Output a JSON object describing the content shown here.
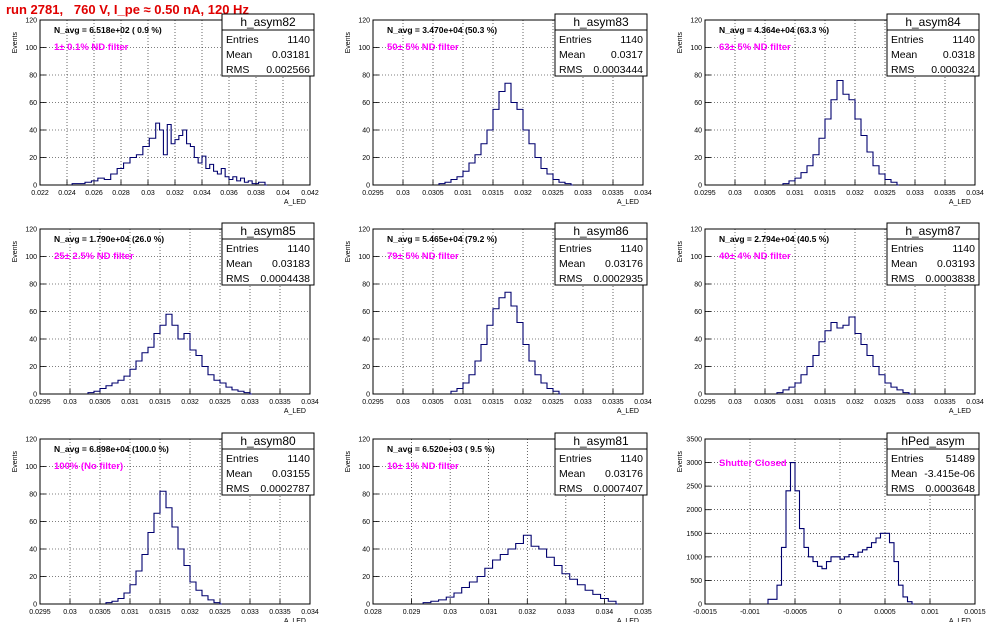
{
  "page_title": "run 2781,   760 V, I_pe ≈ 0.50 nA, 120 Hz",
  "colors": {
    "title": "#e00000",
    "annotation": "#ff00ff",
    "histogram": "#00006e"
  },
  "chart_data": [
    {
      "type": "histogram",
      "name": "h_asym82",
      "ylabel": "Events",
      "xlabel": "A_LED",
      "annotation_navg": "N_avg = 6.518e+02 ( 0.9 %)",
      "annotation_filter": "1± 0.1% ND filter",
      "stats": {
        "Entries": "1140",
        "Mean": "0.03181",
        "RMS": "0.002566"
      },
      "xlim": [
        0.022,
        0.043
      ],
      "ylim": [
        0,
        120
      ],
      "xticks": [
        "0.022",
        "0.024",
        "0.026",
        "0.028",
        "0.03",
        "0.032",
        "0.034",
        "0.036",
        "0.038",
        "0.04",
        "0.042"
      ],
      "yticks": [
        "0",
        "20",
        "40",
        "60",
        "80",
        "100",
        "120"
      ],
      "bins": [
        [
          0.0245,
          1
        ],
        [
          0.0255,
          2
        ],
        [
          0.026,
          3
        ],
        [
          0.0265,
          5
        ],
        [
          0.027,
          4
        ],
        [
          0.0275,
          8
        ],
        [
          0.028,
          12
        ],
        [
          0.0285,
          16
        ],
        [
          0.029,
          20
        ],
        [
          0.0295,
          22
        ],
        [
          0.03,
          28
        ],
        [
          0.0305,
          34
        ],
        [
          0.031,
          45
        ],
        [
          0.0313,
          40
        ],
        [
          0.0316,
          22
        ],
        [
          0.0319,
          44
        ],
        [
          0.0322,
          30
        ],
        [
          0.0325,
          33
        ],
        [
          0.0328,
          36
        ],
        [
          0.0331,
          40
        ],
        [
          0.0334,
          30
        ],
        [
          0.0337,
          28
        ],
        [
          0.034,
          20
        ],
        [
          0.0343,
          16
        ],
        [
          0.0346,
          21
        ],
        [
          0.0349,
          12
        ],
        [
          0.0352,
          15
        ],
        [
          0.0355,
          10
        ],
        [
          0.0358,
          8
        ],
        [
          0.0361,
          12
        ],
        [
          0.0364,
          6
        ],
        [
          0.0367,
          4
        ],
        [
          0.037,
          6
        ],
        [
          0.0373,
          3
        ],
        [
          0.0376,
          5
        ],
        [
          0.0379,
          2
        ],
        [
          0.0382,
          3
        ],
        [
          0.0385,
          1
        ],
        [
          0.039,
          2
        ],
        [
          0.0395,
          0
        ]
      ]
    },
    {
      "type": "histogram",
      "name": "h_asym83",
      "ylabel": "Events",
      "xlabel": "A_LED",
      "annotation_navg": "N_avg = 3.470e+04 (50.3 %)",
      "annotation_filter": "50± 5% ND filter",
      "stats": {
        "Entries": "1140",
        "Mean": "0.0317",
        "RMS": "0.0003444"
      },
      "xlim": [
        0.0295,
        0.034
      ],
      "ylim": [
        0,
        120
      ],
      "xticks": [
        "0.0295",
        "0.03",
        "0.0305",
        "0.031",
        "0.0315",
        "0.032",
        "0.0325",
        "0.033",
        "0.0335",
        "0.034"
      ],
      "yticks": [
        "0",
        "20",
        "40",
        "60",
        "80",
        "100",
        "120"
      ],
      "bins": [
        [
          0.0306,
          1
        ],
        [
          0.0307,
          2
        ],
        [
          0.0308,
          4
        ],
        [
          0.0309,
          6
        ],
        [
          0.031,
          10
        ],
        [
          0.0311,
          16
        ],
        [
          0.0312,
          22
        ],
        [
          0.0313,
          30
        ],
        [
          0.0314,
          40
        ],
        [
          0.0315,
          55
        ],
        [
          0.0316,
          68
        ],
        [
          0.0317,
          74
        ],
        [
          0.0318,
          60
        ],
        [
          0.0319,
          55
        ],
        [
          0.032,
          40
        ],
        [
          0.0321,
          30
        ],
        [
          0.0322,
          20
        ],
        [
          0.0323,
          12
        ],
        [
          0.0324,
          8
        ],
        [
          0.0325,
          4
        ],
        [
          0.0326,
          2
        ],
        [
          0.0327,
          1
        ],
        [
          0.0328,
          0
        ]
      ]
    },
    {
      "type": "histogram",
      "name": "h_asym84",
      "ylabel": "Events",
      "xlabel": "A_LED",
      "annotation_navg": "N_avg = 4.364e+04 (63.3 %)",
      "annotation_filter": "63± 5% ND filter",
      "stats": {
        "Entries": "1140",
        "Mean": "0.0318",
        "RMS": "0.000324"
      },
      "xlim": [
        0.0295,
        0.034
      ],
      "ylim": [
        0,
        120
      ],
      "xticks": [
        "0.0295",
        "0.03",
        "0.0305",
        "0.031",
        "0.0315",
        "0.032",
        "0.0325",
        "0.033",
        "0.0335",
        "0.034"
      ],
      "yticks": [
        "0",
        "20",
        "40",
        "60",
        "80",
        "100",
        "120"
      ],
      "bins": [
        [
          0.0308,
          1
        ],
        [
          0.0309,
          3
        ],
        [
          0.031,
          5
        ],
        [
          0.0311,
          9
        ],
        [
          0.0312,
          14
        ],
        [
          0.0313,
          22
        ],
        [
          0.0314,
          34
        ],
        [
          0.0315,
          48
        ],
        [
          0.0316,
          62
        ],
        [
          0.0317,
          76
        ],
        [
          0.0318,
          66
        ],
        [
          0.0319,
          62
        ],
        [
          0.032,
          48
        ],
        [
          0.0321,
          36
        ],
        [
          0.0322,
          24
        ],
        [
          0.0323,
          14
        ],
        [
          0.0324,
          8
        ],
        [
          0.0325,
          4
        ],
        [
          0.0326,
          2
        ],
        [
          0.0327,
          0
        ]
      ]
    },
    {
      "type": "histogram",
      "name": "h_asym85",
      "ylabel": "Events",
      "xlabel": "A_LED",
      "annotation_navg": "N_avg = 1.790e+04 (26.0 %)",
      "annotation_filter": "25± 2.5% ND filter",
      "stats": {
        "Entries": "1140",
        "Mean": "0.03183",
        "RMS": "0.0004438"
      },
      "xlim": [
        0.0295,
        0.034
      ],
      "ylim": [
        0,
        120
      ],
      "xticks": [
        "0.0295",
        "0.03",
        "0.0305",
        "0.031",
        "0.0315",
        "0.032",
        "0.0325",
        "0.033",
        "0.0335",
        "0.034"
      ],
      "yticks": [
        "0",
        "20",
        "40",
        "60",
        "80",
        "100",
        "120"
      ],
      "bins": [
        [
          0.0303,
          1
        ],
        [
          0.0304,
          2
        ],
        [
          0.0305,
          4
        ],
        [
          0.0306,
          6
        ],
        [
          0.0307,
          8
        ],
        [
          0.0308,
          10
        ],
        [
          0.0309,
          13
        ],
        [
          0.031,
          18
        ],
        [
          0.0311,
          24
        ],
        [
          0.0312,
          30
        ],
        [
          0.0313,
          34
        ],
        [
          0.0314,
          44
        ],
        [
          0.0315,
          50
        ],
        [
          0.0316,
          58
        ],
        [
          0.0317,
          50
        ],
        [
          0.0318,
          40
        ],
        [
          0.0319,
          44
        ],
        [
          0.032,
          32
        ],
        [
          0.0321,
          28
        ],
        [
          0.0322,
          20
        ],
        [
          0.0323,
          14
        ],
        [
          0.0324,
          10
        ],
        [
          0.0325,
          8
        ],
        [
          0.0326,
          5
        ],
        [
          0.0327,
          3
        ],
        [
          0.0328,
          2
        ],
        [
          0.0329,
          1
        ],
        [
          0.033,
          0
        ]
      ]
    },
    {
      "type": "histogram",
      "name": "h_asym86",
      "ylabel": "Events",
      "xlabel": "A_LED",
      "annotation_navg": "N_avg = 5.465e+04 (79.2 %)",
      "annotation_filter": "79± 5% ND filter",
      "stats": {
        "Entries": "1140",
        "Mean": "0.03176",
        "RMS": "0.0002935"
      },
      "xlim": [
        0.0295,
        0.034
      ],
      "ylim": [
        0,
        120
      ],
      "xticks": [
        "0.0295",
        "0.03",
        "0.0305",
        "0.031",
        "0.0315",
        "0.032",
        "0.0325",
        "0.033",
        "0.0335",
        "0.034"
      ],
      "yticks": [
        "0",
        "20",
        "40",
        "60",
        "80",
        "100",
        "120"
      ],
      "bins": [
        [
          0.0308,
          2
        ],
        [
          0.0309,
          4
        ],
        [
          0.031,
          8
        ],
        [
          0.0311,
          14
        ],
        [
          0.0312,
          24
        ],
        [
          0.0313,
          36
        ],
        [
          0.0314,
          50
        ],
        [
          0.0315,
          62
        ],
        [
          0.0316,
          70
        ],
        [
          0.0317,
          74
        ],
        [
          0.0318,
          64
        ],
        [
          0.0319,
          52
        ],
        [
          0.032,
          36
        ],
        [
          0.0321,
          24
        ],
        [
          0.0322,
          14
        ],
        [
          0.0323,
          8
        ],
        [
          0.0324,
          4
        ],
        [
          0.0325,
          2
        ],
        [
          0.0326,
          0
        ]
      ]
    },
    {
      "type": "histogram",
      "name": "h_asym87",
      "ylabel": "Events",
      "xlabel": "A_LED",
      "annotation_navg": "N_avg = 2.794e+04 (40.5 %)",
      "annotation_filter": "40± 4% ND filter",
      "stats": {
        "Entries": "1140",
        "Mean": "0.03193",
        "RMS": "0.0003838"
      },
      "xlim": [
        0.0295,
        0.034
      ],
      "ylim": [
        0,
        120
      ],
      "xticks": [
        "0.0295",
        "0.03",
        "0.0305",
        "0.031",
        "0.0315",
        "0.032",
        "0.0325",
        "0.033",
        "0.0335",
        "0.034"
      ],
      "yticks": [
        "0",
        "20",
        "40",
        "60",
        "80",
        "100",
        "120"
      ],
      "bins": [
        [
          0.0307,
          1
        ],
        [
          0.0308,
          3
        ],
        [
          0.0309,
          5
        ],
        [
          0.031,
          8
        ],
        [
          0.0311,
          14
        ],
        [
          0.0312,
          20
        ],
        [
          0.0313,
          28
        ],
        [
          0.0314,
          38
        ],
        [
          0.0315,
          46
        ],
        [
          0.0316,
          52
        ],
        [
          0.0317,
          48
        ],
        [
          0.0318,
          50
        ],
        [
          0.0319,
          56
        ],
        [
          0.032,
          44
        ],
        [
          0.0321,
          36
        ],
        [
          0.0322,
          28
        ],
        [
          0.0323,
          20
        ],
        [
          0.0324,
          14
        ],
        [
          0.0325,
          8
        ],
        [
          0.0326,
          5
        ],
        [
          0.0327,
          3
        ],
        [
          0.0328,
          1
        ],
        [
          0.0329,
          0
        ]
      ]
    },
    {
      "type": "histogram",
      "name": "h_asym80",
      "ylabel": "Events",
      "xlabel": "A_LED",
      "annotation_navg": "N_avg = 6.898e+04 (100.0 %)",
      "annotation_filter": "100% (No filter)",
      "stats": {
        "Entries": "1140",
        "Mean": "0.03155",
        "RMS": "0.0002787"
      },
      "xlim": [
        0.0295,
        0.034
      ],
      "ylim": [
        0,
        120
      ],
      "xticks": [
        "0.0295",
        "0.03",
        "0.0305",
        "0.031",
        "0.0315",
        "0.032",
        "0.0325",
        "0.033",
        "0.0335",
        "0.034"
      ],
      "yticks": [
        "0",
        "20",
        "40",
        "60",
        "80",
        "100",
        "120"
      ],
      "bins": [
        [
          0.0306,
          1
        ],
        [
          0.0307,
          2
        ],
        [
          0.0308,
          4
        ],
        [
          0.0309,
          8
        ],
        [
          0.031,
          14
        ],
        [
          0.0311,
          24
        ],
        [
          0.0312,
          36
        ],
        [
          0.0313,
          52
        ],
        [
          0.0314,
          66
        ],
        [
          0.0315,
          82
        ],
        [
          0.0316,
          70
        ],
        [
          0.0317,
          56
        ],
        [
          0.0318,
          40
        ],
        [
          0.0319,
          28
        ],
        [
          0.032,
          16
        ],
        [
          0.0321,
          10
        ],
        [
          0.0322,
          6
        ],
        [
          0.0323,
          3
        ],
        [
          0.0324,
          1
        ],
        [
          0.0325,
          0
        ]
      ]
    },
    {
      "type": "histogram",
      "name": "h_asym81",
      "ylabel": "Events",
      "xlabel": "A_LED",
      "annotation_navg": "N_avg = 6.520e+03 ( 9.5 %)",
      "annotation_filter": "10± 1% ND filter",
      "stats": {
        "Entries": "1140",
        "Mean": "0.03176",
        "RMS": "0.0007407"
      },
      "xlim": [
        0.028,
        0.035
      ],
      "ylim": [
        0,
        120
      ],
      "xticks": [
        "0.028",
        "0.029",
        "0.03",
        "0.031",
        "0.032",
        "0.033",
        "0.034",
        "0.035"
      ],
      "yticks": [
        "0",
        "20",
        "40",
        "60",
        "80",
        "100",
        "120"
      ],
      "bins": [
        [
          0.0293,
          1
        ],
        [
          0.0295,
          2
        ],
        [
          0.0297,
          3
        ],
        [
          0.0299,
          5
        ],
        [
          0.0301,
          8
        ],
        [
          0.0303,
          12
        ],
        [
          0.0305,
          16
        ],
        [
          0.0307,
          20
        ],
        [
          0.0309,
          26
        ],
        [
          0.0311,
          32
        ],
        [
          0.0313,
          36
        ],
        [
          0.0315,
          40
        ],
        [
          0.0317,
          44
        ],
        [
          0.0319,
          50
        ],
        [
          0.0321,
          42
        ],
        [
          0.0323,
          40
        ],
        [
          0.0325,
          34
        ],
        [
          0.0327,
          28
        ],
        [
          0.0329,
          22
        ],
        [
          0.0331,
          18
        ],
        [
          0.0333,
          14
        ],
        [
          0.0335,
          10
        ],
        [
          0.0337,
          7
        ],
        [
          0.0339,
          4
        ],
        [
          0.0341,
          2
        ],
        [
          0.0343,
          0
        ]
      ]
    },
    {
      "type": "histogram",
      "name": "hPed_asym",
      "ylabel": "Events",
      "xlabel": "A_LED",
      "annotation_navg": "",
      "annotation_filter": "Shutter Closed",
      "stats": {
        "Entries": "51489",
        "Mean": "-3.415e-06",
        "RMS": "0.0003648"
      },
      "xlim": [
        -0.0015,
        0.0015
      ],
      "ylim": [
        0,
        3500
      ],
      "xticks": [
        "-0.0015",
        "-0.001",
        "-0.0005",
        "0",
        "0.0005",
        "0.001",
        "0.0015"
      ],
      "yticks": [
        "0",
        "500",
        "1000",
        "1500",
        "2000",
        "2500",
        "3000",
        "3500"
      ],
      "bins": [
        [
          -0.0008,
          100
        ],
        [
          -0.0007,
          400
        ],
        [
          -0.00065,
          1200
        ],
        [
          -0.0006,
          2400
        ],
        [
          -0.00055,
          3000
        ],
        [
          -0.0005,
          2400
        ],
        [
          -0.00045,
          1600
        ],
        [
          -0.0004,
          1200
        ],
        [
          -0.00035,
          1000
        ],
        [
          -0.0003,
          900
        ],
        [
          -0.00025,
          800
        ],
        [
          -0.0002,
          750
        ],
        [
          -0.00015,
          900
        ],
        [
          -0.0001,
          1000
        ],
        [
          -5e-05,
          1000
        ],
        [
          0,
          950
        ],
        [
          5e-05,
          1000
        ],
        [
          0.0001,
          1050
        ],
        [
          0.00015,
          1000
        ],
        [
          0.0002,
          1100
        ],
        [
          0.00025,
          1150
        ],
        [
          0.0003,
          1200
        ],
        [
          0.00035,
          1300
        ],
        [
          0.0004,
          1400
        ],
        [
          0.00045,
          1500
        ],
        [
          0.0005,
          1500
        ],
        [
          0.00055,
          1300
        ],
        [
          0.0006,
          900
        ],
        [
          0.00065,
          400
        ],
        [
          0.0007,
          150
        ],
        [
          0.00075,
          50
        ],
        [
          0.0008,
          0
        ]
      ]
    }
  ]
}
